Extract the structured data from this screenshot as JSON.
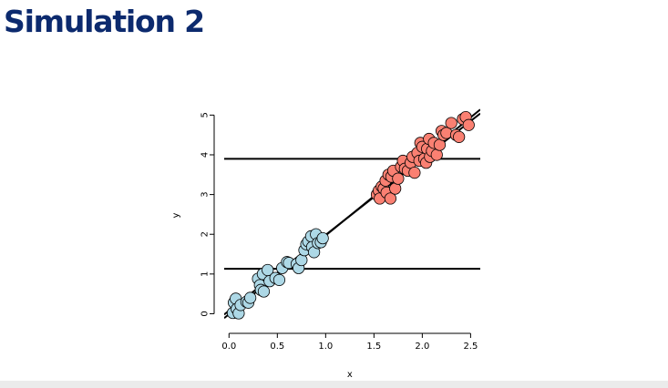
{
  "slide": {
    "title": "Simulation 2"
  },
  "chart_data": {
    "type": "scatter",
    "title": "",
    "xlabel": "x",
    "ylabel": "y",
    "xlim": [
      -0.05,
      2.6
    ],
    "ylim": [
      -0.15,
      5.1
    ],
    "xticks": [
      0.0,
      0.5,
      1.0,
      1.5,
      2.0,
      2.5
    ],
    "xtick_labels": [
      "0.0",
      "0.5",
      "1.0",
      "1.5",
      "2.0",
      "2.5"
    ],
    "yticks": [
      0,
      1,
      2,
      3,
      4,
      5
    ],
    "ytick_labels": [
      "0",
      "1",
      "2",
      "3",
      "4",
      "5"
    ],
    "grid": false,
    "legend": "none",
    "series": [
      {
        "color": "#add8e6",
        "points": [
          [
            0.04,
            0.02
          ],
          [
            0.05,
            0.28
          ],
          [
            0.07,
            0.38
          ],
          [
            0.08,
            0.12
          ],
          [
            0.1,
            0.01
          ],
          [
            0.12,
            0.22
          ],
          [
            0.18,
            0.3
          ],
          [
            0.2,
            0.28
          ],
          [
            0.22,
            0.4
          ],
          [
            0.3,
            0.88
          ],
          [
            0.32,
            0.72
          ],
          [
            0.33,
            0.6
          ],
          [
            0.35,
            1.0
          ],
          [
            0.36,
            0.56
          ],
          [
            0.4,
            1.1
          ],
          [
            0.42,
            0.82
          ],
          [
            0.48,
            0.9
          ],
          [
            0.52,
            0.85
          ],
          [
            0.55,
            1.15
          ],
          [
            0.6,
            1.3
          ],
          [
            0.62,
            1.28
          ],
          [
            0.7,
            1.25
          ],
          [
            0.72,
            1.15
          ],
          [
            0.75,
            1.35
          ],
          [
            0.78,
            1.6
          ],
          [
            0.8,
            1.75
          ],
          [
            0.82,
            1.82
          ],
          [
            0.85,
            1.95
          ],
          [
            0.86,
            1.68
          ],
          [
            0.88,
            1.55
          ],
          [
            0.9,
            2.0
          ],
          [
            0.92,
            1.78
          ],
          [
            0.95,
            1.8
          ],
          [
            0.97,
            1.9
          ]
        ]
      },
      {
        "color": "#fa8072",
        "points": [
          [
            1.53,
            3.0
          ],
          [
            1.55,
            3.1
          ],
          [
            1.56,
            2.9
          ],
          [
            1.58,
            3.2
          ],
          [
            1.6,
            3.15
          ],
          [
            1.62,
            3.35
          ],
          [
            1.63,
            3.05
          ],
          [
            1.65,
            3.5
          ],
          [
            1.67,
            2.9
          ],
          [
            1.68,
            3.45
          ],
          [
            1.7,
            3.6
          ],
          [
            1.72,
            3.15
          ],
          [
            1.75,
            3.4
          ],
          [
            1.78,
            3.7
          ],
          [
            1.8,
            3.85
          ],
          [
            1.82,
            3.65
          ],
          [
            1.85,
            3.6
          ],
          [
            1.88,
            3.8
          ],
          [
            1.9,
            3.95
          ],
          [
            1.92,
            3.55
          ],
          [
            1.95,
            4.05
          ],
          [
            1.97,
            3.85
          ],
          [
            1.98,
            4.3
          ],
          [
            2.0,
            4.2
          ],
          [
            2.02,
            3.9
          ],
          [
            2.04,
            3.8
          ],
          [
            2.05,
            4.15
          ],
          [
            2.07,
            4.4
          ],
          [
            2.08,
            3.95
          ],
          [
            2.1,
            4.1
          ],
          [
            2.12,
            4.3
          ],
          [
            2.15,
            4.0
          ],
          [
            2.18,
            4.25
          ],
          [
            2.2,
            4.6
          ],
          [
            2.22,
            4.5
          ],
          [
            2.25,
            4.55
          ],
          [
            2.3,
            4.8
          ],
          [
            2.35,
            4.5
          ],
          [
            2.38,
            4.45
          ],
          [
            2.42,
            4.9
          ],
          [
            2.45,
            4.95
          ],
          [
            2.48,
            4.75
          ]
        ]
      }
    ],
    "lines": [
      {
        "kind": "horizontal",
        "y": 1.13
      },
      {
        "kind": "horizontal",
        "y": 3.9
      },
      {
        "kind": "segment",
        "x1": -0.05,
        "y1": -0.11,
        "x2": 2.6,
        "y2": 5.14
      },
      {
        "kind": "segment",
        "x1": -0.05,
        "y1": -0.02,
        "x2": 2.6,
        "y2": 5.04
      }
    ]
  }
}
